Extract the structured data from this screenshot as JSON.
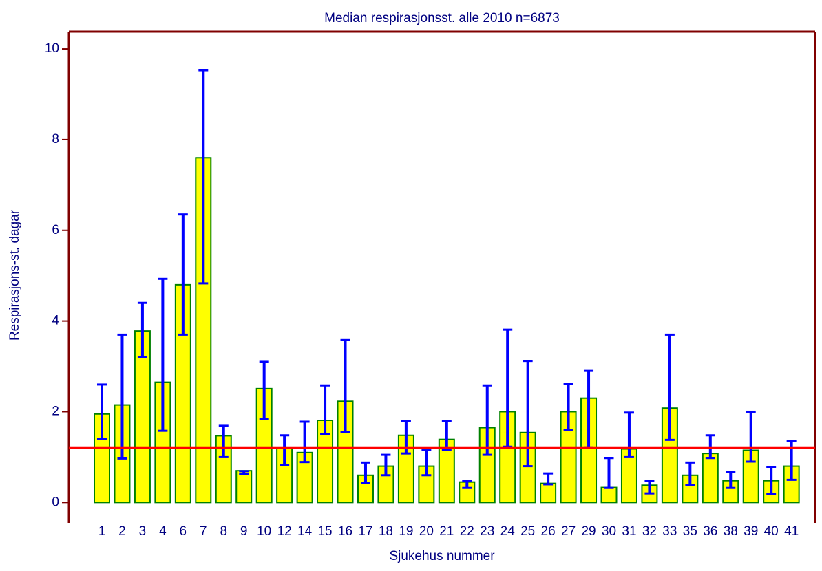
{
  "chart_data": {
    "type": "bar",
    "title": "Median respirasjonsst. alle 2010 n=6873",
    "x_label": "Sjukehus nummer",
    "y_label": "Respirasjons-st. dagar",
    "categories": [
      "1",
      "2",
      "3",
      "4",
      "6",
      "7",
      "8",
      "9",
      "10",
      "12",
      "14",
      "15",
      "16",
      "17",
      "18",
      "19",
      "20",
      "21",
      "22",
      "23",
      "24",
      "25",
      "26",
      "27",
      "29",
      "30",
      "31",
      "32",
      "33",
      "35",
      "36",
      "38",
      "39",
      "40",
      "41"
    ],
    "values": [
      1.95,
      2.15,
      3.78,
      2.65,
      4.8,
      7.6,
      1.47,
      0.7,
      2.51,
      1.2,
      1.1,
      1.81,
      2.23,
      0.6,
      0.8,
      1.48,
      0.8,
      1.39,
      0.45,
      1.65,
      2.0,
      1.54,
      0.42,
      2.0,
      2.3,
      0.33,
      1.18,
      0.38,
      2.08,
      0.6,
      1.08,
      0.48,
      1.15,
      0.48,
      0.8
    ],
    "lower": [
      1.4,
      0.97,
      3.2,
      1.58,
      3.7,
      4.83,
      1.0,
      0.62,
      1.84,
      0.83,
      0.89,
      1.5,
      1.55,
      0.43,
      0.6,
      1.08,
      0.6,
      1.15,
      0.32,
      1.05,
      1.23,
      0.8,
      0.4,
      1.6,
      1.2,
      0.32,
      1.0,
      0.2,
      1.38,
      0.38,
      0.98,
      0.32,
      0.9,
      0.18,
      0.5
    ],
    "upper": [
      2.6,
      3.7,
      4.4,
      4.93,
      6.35,
      9.53,
      1.69,
      0.69,
      3.1,
      1.48,
      1.78,
      2.58,
      3.58,
      0.88,
      1.05,
      1.79,
      1.15,
      1.79,
      0.48,
      2.58,
      3.81,
      3.12,
      0.64,
      2.62,
      2.9,
      0.98,
      1.98,
      0.48,
      3.7,
      0.88,
      1.48,
      0.68,
      2.0,
      0.78,
      1.35
    ],
    "color": "#ffff00",
    "edge_color": "#008000",
    "error_color": "#0000ff",
    "reference_line": 1.2,
    "reference_color": "#ff0000",
    "ylim": [
      -0.45,
      10.38
    ],
    "yticks": [
      0,
      2,
      4,
      6,
      8,
      10
    ],
    "grid": false
  }
}
